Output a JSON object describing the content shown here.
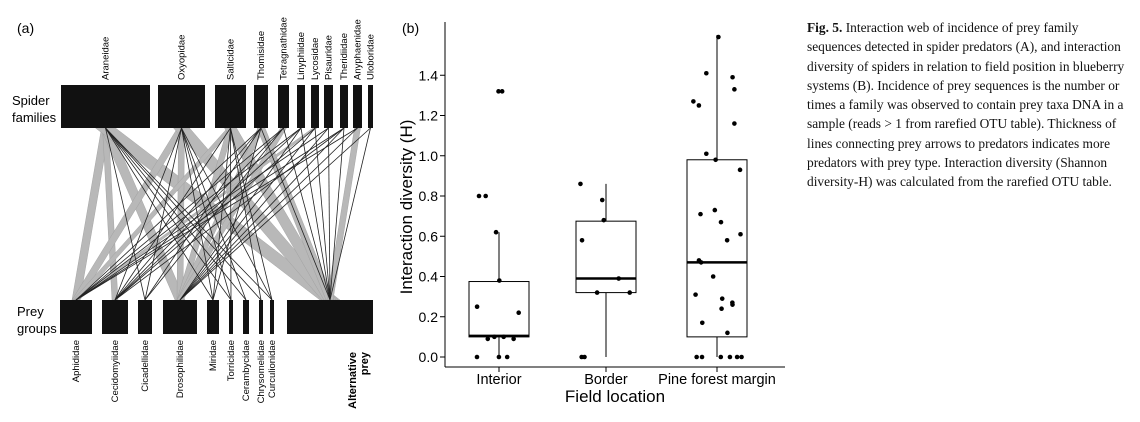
{
  "panel_a": {
    "label": "(a)",
    "spider_label_line1": "Spider",
    "spider_label_line2": "families",
    "prey_label_line1": "Prey",
    "prey_label_line2": "groups",
    "spiders": [
      "Araneidae",
      "Oxyopidae",
      "Salticidae",
      "Thomisidae",
      "Tetragnathidae",
      "Linyphiidae",
      "Lycosidae",
      "Pisauridae",
      "Theridiidae",
      "Anyphaenidae",
      "Uloboridae"
    ],
    "prey": [
      "Aphididae",
      "Cecidomyiidae",
      "Cicadellidae",
      "Drosophilidae",
      "Miridae",
      "Torricidae",
      "Cerambycidae",
      "Chrysomelidae",
      "Curculionidae",
      "Alternative prey"
    ],
    "alternative_line1": "Alternative",
    "alternative_line2": "prey"
  },
  "panel_b": {
    "label": "(b)",
    "ylabel": "Interaction diversity (H)",
    "xlabel": "Field location",
    "categories": [
      "Interior",
      "Border",
      "Pine forest margin"
    ]
  },
  "chart_data": {
    "type": "box",
    "title": "",
    "xlabel": "Field location",
    "ylabel": "Interaction diversity (H)",
    "categories": [
      "Interior",
      "Border",
      "Pine forest margin"
    ],
    "ylim": [
      -0.08,
      1.6
    ],
    "yticks": [
      0.0,
      0.2,
      0.4,
      0.6,
      0.8,
      1.0,
      1.2,
      1.4
    ],
    "grid": false,
    "boxes": [
      {
        "category": "Interior",
        "q1": 0.1,
        "median": 0.105,
        "q3": 0.375,
        "whisker_low": 0.0,
        "whisker_high": 0.62
      },
      {
        "category": "Border",
        "q1": 0.32,
        "median": 0.39,
        "q3": 0.675,
        "whisker_low": 0.0,
        "whisker_high": 0.86
      },
      {
        "category": "Pine forest margin",
        "q1": 0.1,
        "median": 0.47,
        "q3": 0.98,
        "whisker_low": 0.0,
        "whisker_high": 1.6
      }
    ],
    "points": [
      {
        "category": "Interior",
        "values": [
          1.32,
          1.32,
          0.8,
          0.8,
          0.62,
          0.38,
          0.25,
          0.22,
          0.1,
          0.1,
          0.09,
          0.09,
          0.0,
          0.0,
          0.0
        ]
      },
      {
        "category": "Border",
        "values": [
          0.86,
          0.78,
          0.68,
          0.58,
          0.39,
          0.32,
          0.32,
          0.0,
          0.0
        ]
      },
      {
        "category": "Pine forest margin",
        "values": [
          1.59,
          1.41,
          1.39,
          1.33,
          1.27,
          1.25,
          1.16,
          1.01,
          0.98,
          0.93,
          0.73,
          0.71,
          0.67,
          0.61,
          0.58,
          0.48,
          0.47,
          0.4,
          0.31,
          0.29,
          0.27,
          0.26,
          0.24,
          0.17,
          0.12,
          0.0,
          0.0,
          0.0,
          0.0,
          0.0,
          0.0
        ]
      }
    ]
  },
  "caption": {
    "fig_label": "Fig. 5.",
    "text": "Interaction web of incidence of prey family sequences detected in spider predators (A), and interaction diversity of spiders in relation to field position in blueberry systems (B). Incidence of prey sequences is the number or times a family was observed to contain prey taxa DNA in a sample (reads > 1 from rarefied OTU table). Thickness of lines connecting prey arrows to predators indicates more predators with prey type. Interaction diversity (Shannon diversity-H) was calculated from the rarefied OTU table."
  }
}
